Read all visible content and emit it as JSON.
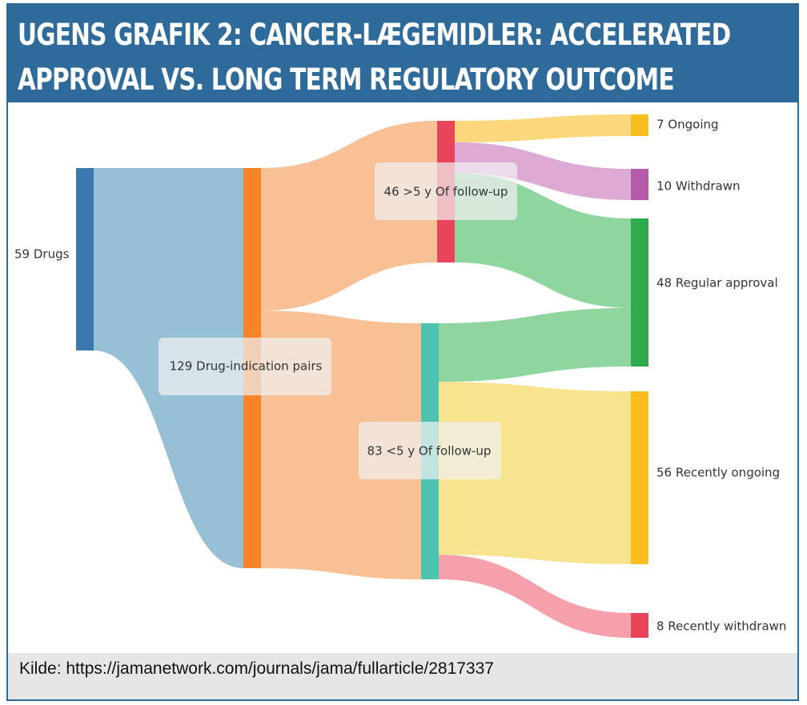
{
  "title": "UGENS GRAFIK 2:  CANCER-LÆGEMIDLER: ACCELERATED APPROVAL VS. LONG TERM REGULATORY OUTCOME",
  "source": "Kilde:  https://jamanetwork.com/journals/jama/fullarticle/2817337",
  "chart_data": {
    "type": "sankey",
    "nodes": [
      {
        "id": "drugs",
        "label": "59 Drugs",
        "value": 59,
        "color": "#3a78ad"
      },
      {
        "id": "pairs",
        "label": "129 Drug-indication pairs",
        "value": 129,
        "color": "#f5842a"
      },
      {
        "id": "gt5",
        "label": "46 >5 y Of follow-up",
        "value": 46,
        "color": "#e8455a"
      },
      {
        "id": "lt5",
        "label": "83 <5 y Of follow-up",
        "value": 83,
        "color": "#4dc4b0"
      },
      {
        "id": "ongoing",
        "label": "7 Ongoing",
        "value": 7,
        "color": "#f6bd1d"
      },
      {
        "id": "withdrawn",
        "label": "10 Withdrawn",
        "value": 10,
        "color": "#b65aab"
      },
      {
        "id": "regular",
        "label": "48 Regular approval",
        "value": 48,
        "color": "#2eaa4d"
      },
      {
        "id": "recent_ongoing",
        "label": "56 Recently ongoing",
        "value": 56,
        "color": "#f6bd1d"
      },
      {
        "id": "recent_withdrawn",
        "label": "8 Recently withdrawn",
        "value": 8,
        "color": "#e8455a"
      }
    ],
    "links": [
      {
        "source": "drugs",
        "target": "pairs",
        "value": 59,
        "color": "#97bfd6"
      },
      {
        "source": "pairs",
        "target": "gt5",
        "value": 46,
        "color": "#f8c195"
      },
      {
        "source": "pairs",
        "target": "lt5",
        "value": 83,
        "color": "#f8c195"
      },
      {
        "source": "gt5",
        "target": "ongoing",
        "value": 7,
        "color": "#fbd77d"
      },
      {
        "source": "gt5",
        "target": "withdrawn",
        "value": 10,
        "color": "#dcaad2"
      },
      {
        "source": "gt5",
        "target": "regular",
        "value": 29,
        "color": "#8fd5a0"
      },
      {
        "source": "lt5",
        "target": "regular",
        "value": 19,
        "color": "#8fd5a0"
      },
      {
        "source": "lt5",
        "target": "recent_ongoing",
        "value": 56,
        "color": "#f8e38f"
      },
      {
        "source": "lt5",
        "target": "recent_withdrawn",
        "value": 8,
        "color": "#f5a0ab"
      }
    ]
  }
}
